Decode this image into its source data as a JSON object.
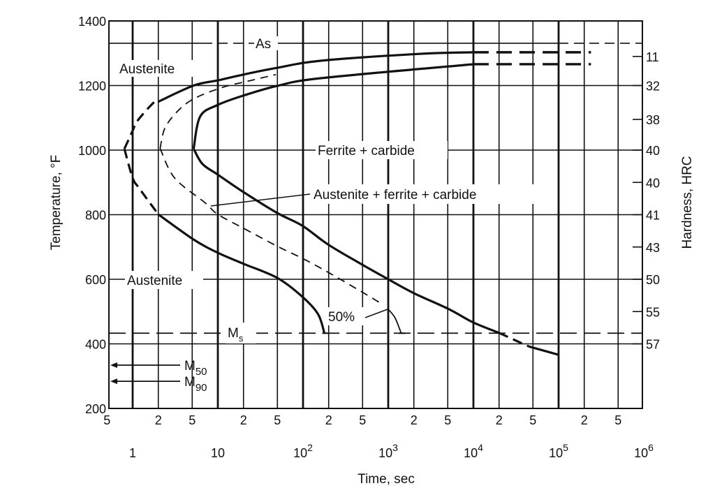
{
  "chart_data": {
    "type": "line",
    "xscale": "log",
    "xlim": [
      0.5,
      1000000
    ],
    "ylim": [
      200,
      1400
    ],
    "grid": true,
    "xlabel": "Time, sec",
    "ylabel": "Temperature, °F",
    "y2label": "Hardness, HRC",
    "y_ticks": [
      "1400",
      "1200",
      "1000",
      "800",
      "600",
      "400",
      "200"
    ],
    "x_minor_ticks": [
      {
        "t": 0.5,
        "label": "5"
      },
      {
        "t": 2,
        "label": "2"
      },
      {
        "t": 5,
        "label": "5"
      },
      {
        "t": 20,
        "label": "2"
      },
      {
        "t": 50,
        "label": "5"
      },
      {
        "t": 200,
        "label": "2"
      },
      {
        "t": 500,
        "label": "5"
      },
      {
        "t": 2000,
        "label": "2"
      },
      {
        "t": 5000,
        "label": "5"
      },
      {
        "t": 20000,
        "label": "2"
      },
      {
        "t": 50000,
        "label": "5"
      },
      {
        "t": 200000,
        "label": "2"
      },
      {
        "t": 500000,
        "label": "5"
      }
    ],
    "x_decade_ticks": [
      {
        "t": 1,
        "base": "1",
        "exp": ""
      },
      {
        "t": 10,
        "base": "10",
        "exp": ""
      },
      {
        "t": 100,
        "base": "10",
        "exp": "2"
      },
      {
        "t": 1000,
        "base": "10",
        "exp": "3"
      },
      {
        "t": 10000,
        "base": "10",
        "exp": "4"
      },
      {
        "t": 100000,
        "base": "10",
        "exp": "5"
      },
      {
        "t": 1000000,
        "base": "10",
        "exp": "6"
      }
    ],
    "hardness_ticks": [
      {
        "T": 1290,
        "label": "11"
      },
      {
        "T": 1200,
        "label": "32"
      },
      {
        "T": 1095,
        "label": "38"
      },
      {
        "T": 1000,
        "label": "40"
      },
      {
        "T": 900,
        "label": "40"
      },
      {
        "T": 800,
        "label": "41"
      },
      {
        "T": 700,
        "label": "43"
      },
      {
        "T": 600,
        "label": "50"
      },
      {
        "T": 500,
        "label": "55"
      },
      {
        "T": 400,
        "label": "57"
      }
    ],
    "reference_lines": {
      "As": {
        "T": 1331,
        "label": "As"
      },
      "Ms": {
        "T": 433,
        "label": "M",
        "sub": "s"
      },
      "M50": {
        "T": 334,
        "label": "M",
        "sub": "50"
      },
      "M90": {
        "T": 284,
        "label": "M",
        "sub": "90"
      }
    },
    "annotations": {
      "austenite_top": "Austenite",
      "ferrite_carbide": "Ferrite + carbide",
      "austenite_ferrite_carbide": "Austenite + ferrite + carbide",
      "austenite_bottom": "Austenite",
      "fifty_percent": "50%"
    },
    "series": [
      {
        "style": "dashed-thick",
        "points": [
          [
            0.8,
            1004
          ],
          [
            1,
            1060
          ],
          [
            1.14,
            1091
          ],
          [
            1.76,
            1147
          ],
          [
            2,
            1150
          ]
        ]
      },
      {
        "style": "solid-thick",
        "points": [
          [
            2,
            1150
          ],
          [
            5.2,
            1200
          ],
          [
            10,
            1216
          ],
          [
            20,
            1234
          ],
          [
            50,
            1255
          ],
          [
            165,
            1277
          ],
          [
            2300,
            1298
          ],
          [
            10000,
            1303
          ]
        ]
      },
      {
        "style": "dashed-ext",
        "points": [
          [
            10000,
            1303
          ],
          [
            240000,
            1303
          ]
        ]
      },
      {
        "style": "dashed-thick",
        "points": [
          [
            0.8,
            1004
          ],
          [
            1,
            914
          ],
          [
            1.2,
            881
          ],
          [
            2,
            801
          ]
        ]
      },
      {
        "style": "solid-thick",
        "points": [
          [
            2,
            801
          ],
          [
            5.2,
            723
          ],
          [
            10,
            682
          ],
          [
            20,
            648
          ],
          [
            50,
            604
          ],
          [
            98,
            546
          ],
          [
            150,
            492
          ],
          [
            178,
            433
          ]
        ]
      },
      {
        "style": "dashed-thin",
        "points": [
          [
            2.1,
            1005
          ],
          [
            2.4,
            1069
          ],
          [
            3.5,
            1125
          ],
          [
            5.5,
            1162
          ],
          [
            11.6,
            1195
          ],
          [
            24.7,
            1216
          ],
          [
            48,
            1234
          ]
        ]
      },
      {
        "style": "dashed-thin",
        "points": [
          [
            2.1,
            1005
          ],
          [
            3.1,
            914
          ],
          [
            7,
            838
          ],
          [
            10,
            801
          ],
          [
            20,
            758
          ],
          [
            50,
            702
          ],
          [
            98,
            665
          ],
          [
            196,
            622
          ],
          [
            475,
            563
          ],
          [
            780,
            529
          ]
        ]
      },
      {
        "style": "solid-thin",
        "points": [
          [
            1000,
            507
          ],
          [
            1200,
            481
          ],
          [
            1420,
            433
          ]
        ]
      },
      {
        "style": "solid-thick",
        "points": [
          [
            5.2,
            1004
          ],
          [
            6.2,
            1104
          ],
          [
            10,
            1140
          ],
          [
            20,
            1169
          ],
          [
            50,
            1199
          ],
          [
            165,
            1223
          ],
          [
            10000,
            1266
          ]
        ]
      },
      {
        "style": "dashed-ext",
        "points": [
          [
            10000,
            1266
          ],
          [
            240000,
            1266
          ]
        ]
      },
      {
        "style": "solid-thick",
        "points": [
          [
            5.2,
            1004
          ],
          [
            6.6,
            957
          ],
          [
            10,
            924
          ],
          [
            20,
            870
          ],
          [
            50,
            805
          ],
          [
            98,
            766
          ],
          [
            196,
            708
          ],
          [
            475,
            648
          ],
          [
            1000,
            600
          ],
          [
            2000,
            557
          ],
          [
            5200,
            507
          ],
          [
            10000,
            466
          ],
          [
            20000,
            434
          ]
        ]
      },
      {
        "style": "dashed-thick",
        "points": [
          [
            20000,
            434
          ],
          [
            44600,
            392
          ]
        ]
      },
      {
        "style": "solid-thick",
        "points": [
          [
            44600,
            392
          ],
          [
            100000,
            366
          ]
        ]
      }
    ]
  }
}
